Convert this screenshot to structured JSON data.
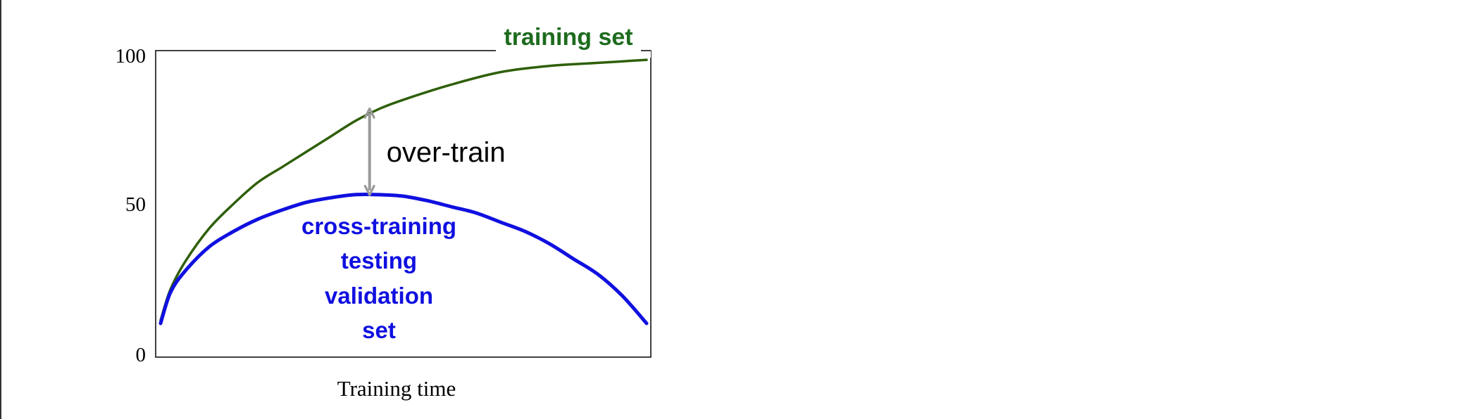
{
  "chart_data": {
    "type": "line",
    "xlabel": "Training time",
    "ylabel": "",
    "xlim": [
      0,
      100
    ],
    "ylim": [
      0,
      100
    ],
    "yticks": [
      "0",
      "50",
      "100"
    ],
    "grid": false,
    "series": [
      {
        "name": "training set",
        "color": "#2f5f0a",
        "label_color": "#1e6b1e",
        "x": [
          0,
          2,
          5,
          10,
          15,
          20,
          25,
          30,
          35,
          40,
          45,
          50,
          60,
          70,
          80,
          90,
          100
        ],
        "y": [
          12,
          22,
          31,
          42,
          50,
          57,
          62,
          67,
          72,
          77,
          81,
          84,
          89,
          93,
          95,
          96,
          97
        ]
      },
      {
        "name": "cross-training testing validation set",
        "label_lines": [
          "cross-training",
          "testing",
          "validation",
          "set"
        ],
        "color": "#1010e0",
        "x": [
          0,
          2,
          5,
          10,
          15,
          20,
          25,
          30,
          35,
          40,
          45,
          50,
          55,
          60,
          65,
          70,
          75,
          80,
          85,
          90,
          95,
          100
        ],
        "y": [
          11,
          21,
          28,
          36,
          41,
          45,
          48,
          50.5,
          52,
          53,
          53,
          52.5,
          51,
          49,
          47,
          44,
          41,
          37,
          32,
          27,
          20,
          11
        ]
      }
    ],
    "annotations": [
      {
        "text": "over-train",
        "x": 43,
        "y_from": 53,
        "y_to": 81,
        "color": "#999999"
      }
    ]
  }
}
